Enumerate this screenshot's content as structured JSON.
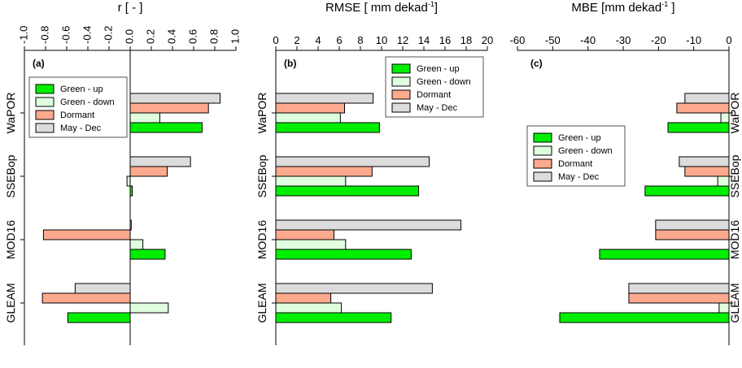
{
  "chart_data": [
    {
      "type": "bar",
      "orientation": "horizontal",
      "title": "r [ - ]",
      "panel_label": "(a)",
      "categories": [
        "WaPOR",
        "SSEBop",
        "MOD16",
        "GLEAM"
      ],
      "series": [
        {
          "name": "Green - up",
          "color": "#00ee00",
          "values": [
            0.68,
            0.02,
            0.33,
            -0.59
          ]
        },
        {
          "name": "Green - down",
          "color": "#dfffdf",
          "values": [
            0.28,
            -0.03,
            0.12,
            0.36
          ]
        },
        {
          "name": "Dormant",
          "color": "#fca98e",
          "values": [
            0.74,
            0.35,
            -0.82,
            -0.83
          ]
        },
        {
          "name": "May - Dec",
          "color": "#dcdcdc",
          "values": [
            0.85,
            0.57,
            0.01,
            -0.52
          ]
        }
      ],
      "xlim": [
        -1,
        1
      ],
      "xticks": [
        {
          "value": -1,
          "label": "-1.0"
        },
        -0.8,
        -0.6,
        -0.4,
        -0.2,
        {
          "value": 0,
          "label": "0.0"
        },
        0.2,
        0.4,
        0.6,
        0.8,
        {
          "value": 1,
          "label": "1.0"
        }
      ],
      "legend": "upper left"
    },
    {
      "type": "bar",
      "orientation": "horizontal",
      "title": "RMSE [ mm dekad",
      "title_sup": "-1",
      "title_end": "]",
      "panel_label": "(b)",
      "categories": [
        "WaPOR",
        "SSEBop",
        "MOD16",
        "GLEAM"
      ],
      "series": [
        {
          "name": "Green - up",
          "color": "#00ee00",
          "values": [
            9.8,
            13.5,
            12.8,
            10.9
          ]
        },
        {
          "name": "Green - down",
          "color": "#dfffdf",
          "values": [
            6.1,
            6.6,
            6.6,
            6.2
          ]
        },
        {
          "name": "Dormant",
          "color": "#fca98e",
          "values": [
            6.5,
            9.1,
            5.5,
            5.2
          ]
        },
        {
          "name": "May - Dec",
          "color": "#dcdcdc",
          "values": [
            9.2,
            14.5,
            17.5,
            14.8
          ]
        }
      ],
      "xlim": [
        0,
        20
      ],
      "xticks": [
        0,
        2,
        4,
        6,
        8,
        10,
        12,
        14,
        16,
        18,
        20
      ],
      "legend": "upper right"
    },
    {
      "type": "bar",
      "orientation": "horizontal",
      "title": "MBE [mm dekad",
      "title_sup": "-1",
      "title_end": " ]",
      "panel_label": "(c)",
      "categories": [
        "WaPOR",
        "SSEBop",
        "MOD16",
        "GLEAM"
      ],
      "series": [
        {
          "name": "Green - up",
          "color": "#00ee00",
          "values": [
            -17.3,
            -23.8,
            -36.7,
            -48
          ]
        },
        {
          "name": "Green - down",
          "color": "#dfffdf",
          "values": [
            -2.3,
            -3.2,
            0,
            -2.8
          ]
        },
        {
          "name": "Dormant",
          "color": "#fca98e",
          "values": [
            -14.8,
            -12.5,
            -20.8,
            -28.4
          ]
        },
        {
          "name": "May - Dec",
          "color": "#dcdcdc",
          "values": [
            -12.5,
            -14.1,
            -20.8,
            -28.4
          ]
        }
      ],
      "xlim": [
        -60,
        0
      ],
      "xticks": [
        -60,
        -50,
        -40,
        -30,
        -20,
        -10,
        0
      ],
      "legend": "center left"
    }
  ]
}
